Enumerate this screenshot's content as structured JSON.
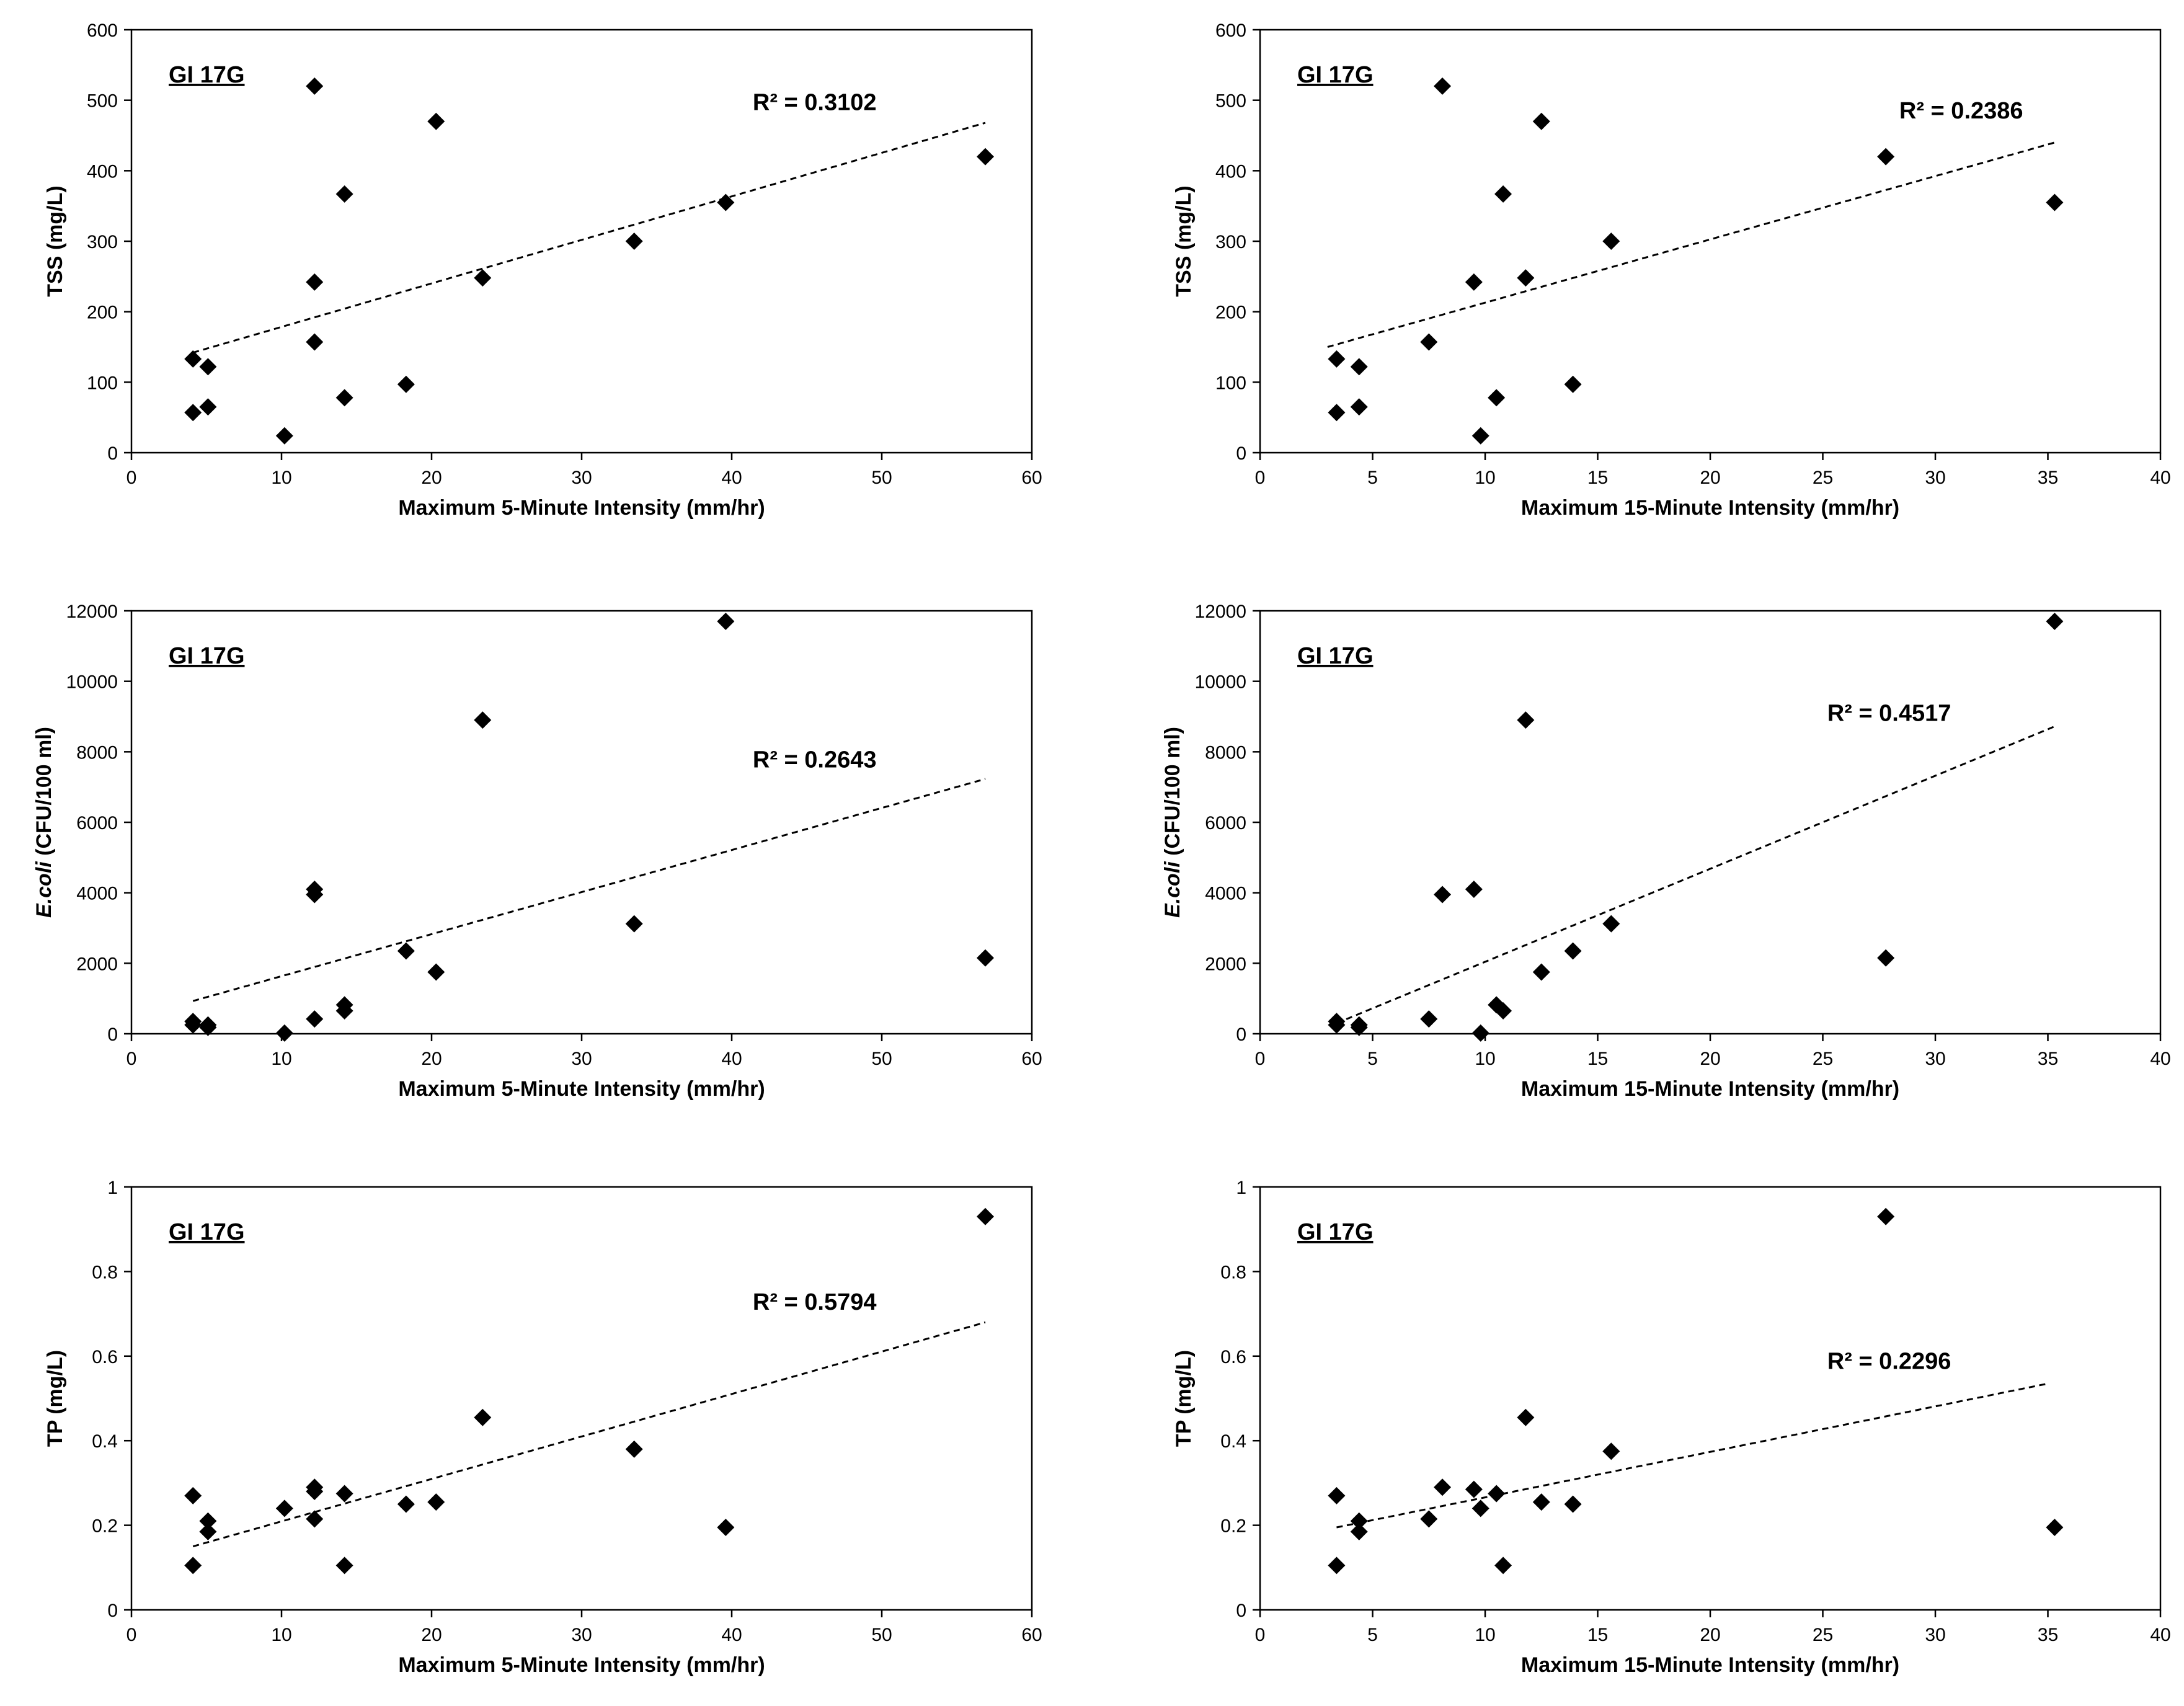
{
  "chart_data": [
    {
      "type": "scatter",
      "tag": "GI 17G",
      "xlabel": "Maximum 5-Minute Intensity (mm/hr)",
      "ylabel": "TSS (mg/L)",
      "ylabel_italic": "",
      "ylabel_rest": "TSS (mg/L)",
      "xlim": [
        0,
        60
      ],
      "xticks": [
        0,
        10,
        20,
        30,
        40,
        50,
        60
      ],
      "ylim": [
        0,
        600
      ],
      "yticks": [
        0,
        100,
        200,
        300,
        400,
        500,
        600
      ],
      "points": [
        [
          4.1,
          133
        ],
        [
          4.1,
          57
        ],
        [
          5.1,
          122
        ],
        [
          5.1,
          65
        ],
        [
          10.2,
          24
        ],
        [
          12.2,
          520
        ],
        [
          12.2,
          242
        ],
        [
          12.2,
          157
        ],
        [
          14.2,
          367
        ],
        [
          14.2,
          78
        ],
        [
          18.3,
          97
        ],
        [
          20.3,
          470
        ],
        [
          23.4,
          248
        ],
        [
          33.5,
          300
        ],
        [
          39.6,
          355
        ],
        [
          56.9,
          420
        ]
      ],
      "trendline": {
        "x": [
          4.1,
          56.9
        ],
        "y": [
          142,
          468
        ]
      },
      "r2": "R² = 0.3102"
    },
    {
      "type": "scatter",
      "tag": "GI 17G",
      "xlabel": "Maximum 15-Minute Intensity (mm/hr)",
      "ylabel": "TSS (mg/L)",
      "ylabel_italic": "",
      "ylabel_rest": "TSS (mg/L)",
      "xlim": [
        0,
        40
      ],
      "xticks": [
        0,
        5,
        10,
        15,
        20,
        25,
        30,
        35,
        40
      ],
      "ylim": [
        0,
        600
      ],
      "yticks": [
        0,
        100,
        200,
        300,
        400,
        500,
        600
      ],
      "points": [
        [
          3.4,
          133
        ],
        [
          3.4,
          57
        ],
        [
          4.4,
          122
        ],
        [
          4.4,
          65
        ],
        [
          7.5,
          157
        ],
        [
          8.1,
          520
        ],
        [
          9.5,
          242
        ],
        [
          9.8,
          24
        ],
        [
          10.5,
          78
        ],
        [
          10.8,
          367
        ],
        [
          11.8,
          248
        ],
        [
          12.5,
          470
        ],
        [
          13.9,
          97
        ],
        [
          15.6,
          300
        ],
        [
          27.8,
          420
        ],
        [
          35.3,
          355
        ]
      ],
      "trendline": {
        "x": [
          3.0,
          35.3
        ],
        "y": [
          150,
          440
        ]
      },
      "r2": "R² = 0.2386"
    },
    {
      "type": "scatter",
      "tag": "GI 17G",
      "xlabel": "Maximum 5-Minute Intensity (mm/hr)",
      "ylabel": "E.coli (CFU/100 ml)",
      "ylabel_italic": "E.coli",
      "ylabel_rest": " (CFU/100 ml)",
      "xlim": [
        0,
        60
      ],
      "xticks": [
        0,
        10,
        20,
        30,
        40,
        50,
        60
      ],
      "ylim": [
        0,
        12000
      ],
      "yticks": [
        0,
        2000,
        4000,
        6000,
        8000,
        10000,
        12000
      ],
      "points": [
        [
          4.1,
          350
        ],
        [
          4.1,
          250
        ],
        [
          5.1,
          250
        ],
        [
          5.1,
          180
        ],
        [
          10.2,
          20
        ],
        [
          12.2,
          4100
        ],
        [
          12.2,
          3950
        ],
        [
          12.2,
          420
        ],
        [
          14.2,
          820
        ],
        [
          14.2,
          650
        ],
        [
          18.3,
          2350
        ],
        [
          20.3,
          1750
        ],
        [
          23.4,
          8900
        ],
        [
          33.5,
          3120
        ],
        [
          39.6,
          11700
        ],
        [
          56.9,
          2150
        ]
      ],
      "trendline": {
        "x": [
          4.1,
          56.9
        ],
        "y": [
          930,
          7230
        ]
      },
      "r2": "R² = 0.2643"
    },
    {
      "type": "scatter",
      "tag": "GI 17G",
      "xlabel": "Maximum 15-Minute Intensity (mm/hr)",
      "ylabel": "E.coli (CFU/100 ml)",
      "ylabel_italic": "E.coli",
      "ylabel_rest": " (CFU/100 ml)",
      "xlim": [
        0,
        40
      ],
      "xticks": [
        0,
        5,
        10,
        15,
        20,
        25,
        30,
        35,
        40
      ],
      "ylim": [
        0,
        12000
      ],
      "yticks": [
        0,
        2000,
        4000,
        6000,
        8000,
        10000,
        12000
      ],
      "points": [
        [
          3.4,
          350
        ],
        [
          3.4,
          250
        ],
        [
          4.4,
          250
        ],
        [
          4.4,
          180
        ],
        [
          7.5,
          420
        ],
        [
          8.1,
          3950
        ],
        [
          9.5,
          4100
        ],
        [
          9.8,
          20
        ],
        [
          10.5,
          820
        ],
        [
          10.8,
          650
        ],
        [
          11.8,
          8900
        ],
        [
          12.5,
          1750
        ],
        [
          13.9,
          2350
        ],
        [
          15.6,
          3120
        ],
        [
          27.8,
          2150
        ],
        [
          35.3,
          11700
        ]
      ],
      "trendline": {
        "x": [
          3.4,
          35.3
        ],
        "y": [
          300,
          8720
        ]
      },
      "r2": "R² = 0.4517"
    },
    {
      "type": "scatter",
      "tag": "GI 17G",
      "xlabel": "Maximum 5-Minute Intensity (mm/hr)",
      "ylabel": "TP (mg/L)",
      "ylabel_italic": "",
      "ylabel_rest": "TP (mg/L)",
      "xlim": [
        0,
        60
      ],
      "xticks": [
        0,
        10,
        20,
        30,
        40,
        50,
        60
      ],
      "ylim": [
        0,
        1
      ],
      "yticks": [
        0,
        0.2,
        0.4,
        0.6,
        0.8,
        1
      ],
      "points": [
        [
          4.1,
          0.27
        ],
        [
          4.1,
          0.105
        ],
        [
          5.1,
          0.21
        ],
        [
          5.1,
          0.185
        ],
        [
          10.2,
          0.24
        ],
        [
          12.2,
          0.29
        ],
        [
          12.2,
          0.28
        ],
        [
          12.2,
          0.215
        ],
        [
          14.2,
          0.275
        ],
        [
          14.2,
          0.105
        ],
        [
          18.3,
          0.25
        ],
        [
          20.3,
          0.255
        ],
        [
          23.4,
          0.455
        ],
        [
          33.5,
          0.38
        ],
        [
          39.6,
          0.195
        ],
        [
          56.9,
          0.93
        ]
      ],
      "trendline": {
        "x": [
          4.1,
          56.9
        ],
        "y": [
          0.15,
          0.68
        ]
      },
      "r2": "R² = 0.5794"
    },
    {
      "type": "scatter",
      "tag": "GI 17G",
      "xlabel": "Maximum 15-Minute Intensity (mm/hr)",
      "ylabel": "TP (mg/L)",
      "ylabel_italic": "",
      "ylabel_rest": "TP (mg/L)",
      "xlim": [
        0,
        40
      ],
      "xticks": [
        0,
        5,
        10,
        15,
        20,
        25,
        30,
        35,
        40
      ],
      "ylim": [
        0,
        1
      ],
      "yticks": [
        0,
        0.2,
        0.4,
        0.6,
        0.8,
        1
      ],
      "points": [
        [
          3.4,
          0.27
        ],
        [
          3.4,
          0.105
        ],
        [
          4.4,
          0.21
        ],
        [
          4.4,
          0.185
        ],
        [
          7.5,
          0.215
        ],
        [
          8.1,
          0.29
        ],
        [
          9.5,
          0.285
        ],
        [
          9.8,
          0.24
        ],
        [
          10.5,
          0.275
        ],
        [
          10.8,
          0.105
        ],
        [
          11.8,
          0.455
        ],
        [
          12.5,
          0.255
        ],
        [
          13.9,
          0.25
        ],
        [
          15.6,
          0.375
        ],
        [
          27.8,
          0.93
        ],
        [
          35.3,
          0.195
        ]
      ],
      "trendline": {
        "x": [
          3.4,
          35.0
        ],
        "y": [
          0.195,
          0.535
        ]
      },
      "r2": "R² = 0.2296"
    }
  ]
}
